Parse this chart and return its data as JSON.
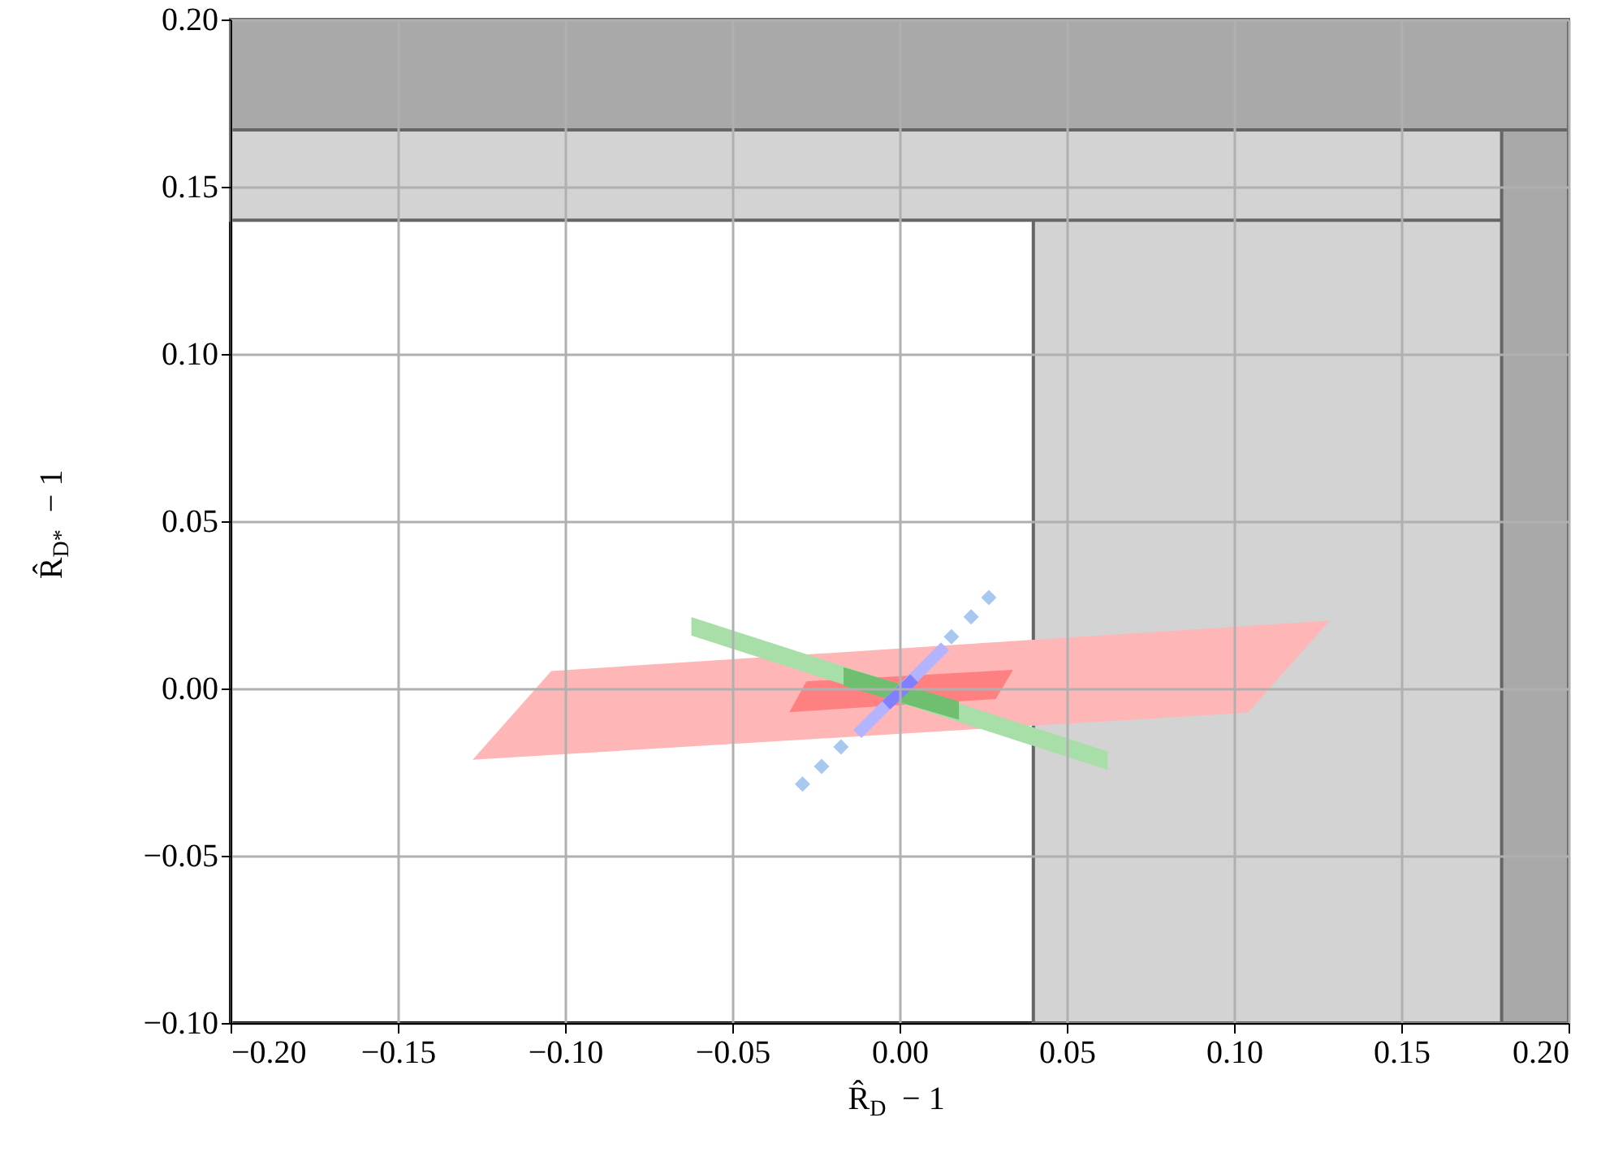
{
  "chart_data": {
    "type": "area",
    "xlabel": "R̂$_{D}$ − 1",
    "ylabel": "R̂$_{D*}$ − 1",
    "xlim": [
      -0.2,
      0.2
    ],
    "ylim": [
      -0.1,
      0.2
    ],
    "xticks": [
      {
        "value": -0.2,
        "label": "−0.20"
      },
      {
        "value": -0.15,
        "label": "−0.15"
      },
      {
        "value": -0.1,
        "label": "−0.10"
      },
      {
        "value": -0.05,
        "label": "−0.05"
      },
      {
        "value": 0,
        "label": "0.00"
      },
      {
        "value": 0.05,
        "label": "0.05"
      },
      {
        "value": 0.1,
        "label": "0.10"
      },
      {
        "value": 0.15,
        "label": "0.15"
      },
      {
        "value": 0.2,
        "label": "0.20"
      }
    ],
    "yticks": [
      {
        "value": -0.1,
        "label": "−0.10"
      },
      {
        "value": -0.05,
        "label": "−0.05"
      },
      {
        "value": 0,
        "label": "0.00"
      },
      {
        "value": 0.05,
        "label": "0.05"
      },
      {
        "value": 0.1,
        "label": "0.10"
      },
      {
        "value": 0.15,
        "label": "0.15"
      },
      {
        "value": 0.2,
        "label": "0.20"
      }
    ],
    "grid": true,
    "bands": [
      {
        "axis": "x",
        "from": 0.04,
        "to": 0.2,
        "color": "#d3d3d3"
      },
      {
        "axis": "y",
        "from": 0.14,
        "to": 0.2,
        "color": "#d3d3d3"
      },
      {
        "axis": "x",
        "from": 0.18,
        "to": 0.2,
        "color": "#a9a9a9"
      },
      {
        "axis": "y",
        "from": 0.167,
        "to": 0.2,
        "color": "#a9a9a9"
      }
    ],
    "series": [
      {
        "color": "#ffb6b6",
        "x": [
          -0.127,
          -0.104,
          0.128,
          0.104
        ],
        "values": [
          -0.021,
          0.005,
          0.02,
          -0.007
        ]
      },
      {
        "color": "#ff8080",
        "x": [
          -0.0325,
          -0.0277,
          0.0335,
          0.0286
        ],
        "values": [
          -0.0068,
          0.0019,
          0.0053,
          -0.0029
        ]
      },
      {
        "color": "#a8dea8",
        "x": [
          -0.062,
          0.062,
          0.062,
          -0.062
        ],
        "values": [
          0.021,
          -0.019,
          -0.024,
          0.016
        ]
      },
      {
        "color": "#70bf70",
        "x": [
          -0.0165,
          0.0175,
          0.0175,
          -0.0165
        ],
        "values": [
          0.006,
          -0.004,
          -0.009,
          0.001
        ]
      },
      {
        "type": "line",
        "color": "#b3b3ff",
        "x": [
          -0.0126,
          0.0136
        ],
        "values": [
          -0.0136,
          0.0126
        ]
      },
      {
        "type": "line",
        "color": "#8080ff",
        "x": [
          -0.004,
          0.0044
        ],
        "values": [
          -0.005,
          0.003
        ]
      },
      {
        "type": "scatter",
        "color": "#a8c8f0",
        "marker": "diamond",
        "x": [
          -0.029,
          -0.0233,
          -0.0175,
          0.0155,
          0.0214,
          0.0267
        ],
        "values": [
          -0.0286,
          -0.0233,
          -0.0175,
          0.0155,
          0.0214,
          0.0272
        ]
      }
    ]
  }
}
